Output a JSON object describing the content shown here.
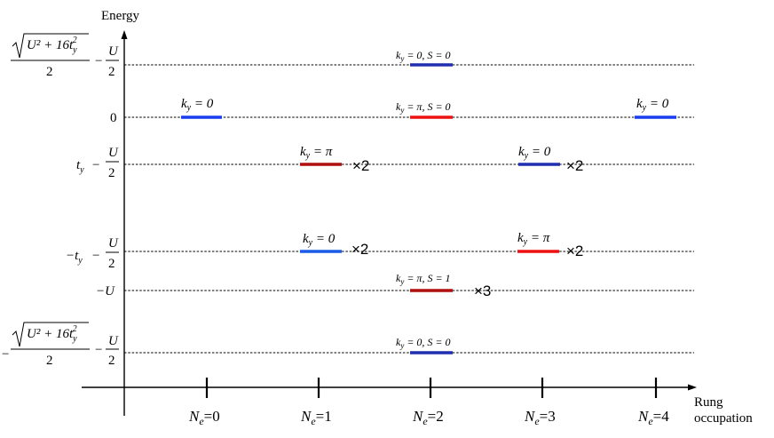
{
  "axis": {
    "y_title": "Energy",
    "x_title_line1": "Rung",
    "x_title_line2": "occupation"
  },
  "x_ticks": [
    {
      "n": "N",
      "sub": "e",
      "eq": "=0"
    },
    {
      "n": "N",
      "sub": "e",
      "eq": "=1"
    },
    {
      "n": "N",
      "sub": "e",
      "eq": "=2"
    },
    {
      "n": "N",
      "sub": "e",
      "eq": "=3"
    },
    {
      "n": "N",
      "sub": "e",
      "eq": "=4"
    }
  ],
  "y_labels": {
    "top_sign": "",
    "bottom_sign": "−",
    "sqrt_num": "U² + 16t",
    "sqrt_num_sub": "y",
    "sqrt_num_sup": "2",
    "two": "2",
    "minus": "−",
    "U": "U",
    "zero": "0",
    "t": "t",
    "ty_sub": "y",
    "neg_t": "−t",
    "neg_U": "−U"
  },
  "levels": [
    {
      "label": "k_y = 0, S = 0",
      "text": "k",
      "sub": "y",
      "rest": " = 0, S = 0",
      "color": "#1f2fb0",
      "mult": ""
    },
    {
      "label": "k_y = 0",
      "text": "k",
      "sub": "y",
      "rest": " = 0",
      "color": "#1a3cf0",
      "mult": ""
    },
    {
      "label": "k_y = π, S = 0",
      "text": "k",
      "sub": "y",
      "rest": " = π, S = 0",
      "color": "#ee1111",
      "mult": ""
    },
    {
      "label": "k_y = 0",
      "text": "k",
      "sub": "y",
      "rest": " = 0",
      "color": "#1a3cf0",
      "mult": ""
    },
    {
      "label": "k_y = π",
      "text": "k",
      "sub": "y",
      "rest": " = π",
      "color": "#b00f0f",
      "mult": "×2"
    },
    {
      "label": "k_y = 0",
      "text": "k",
      "sub": "y",
      "rest": " = 0",
      "color": "#1f2fb0",
      "mult": "×2"
    },
    {
      "label": "k_y = 0",
      "text": "k",
      "sub": "y",
      "rest": " = 0",
      "color": "#1a5ce8",
      "mult": "×2"
    },
    {
      "label": "k_y = π",
      "text": "k",
      "sub": "y",
      "rest": " = π",
      "color": "#ee1111",
      "mult": "×2"
    },
    {
      "label": "k_y = π, S = 1",
      "text": "k",
      "sub": "y",
      "rest": " = π, S = 1",
      "color": "#b00f0f",
      "mult": "×3"
    },
    {
      "label": "k_y = 0, S = 0",
      "text": "k",
      "sub": "y",
      "rest": " = 0, S = 0",
      "color": "#1f2fb0",
      "mult": ""
    }
  ]
}
